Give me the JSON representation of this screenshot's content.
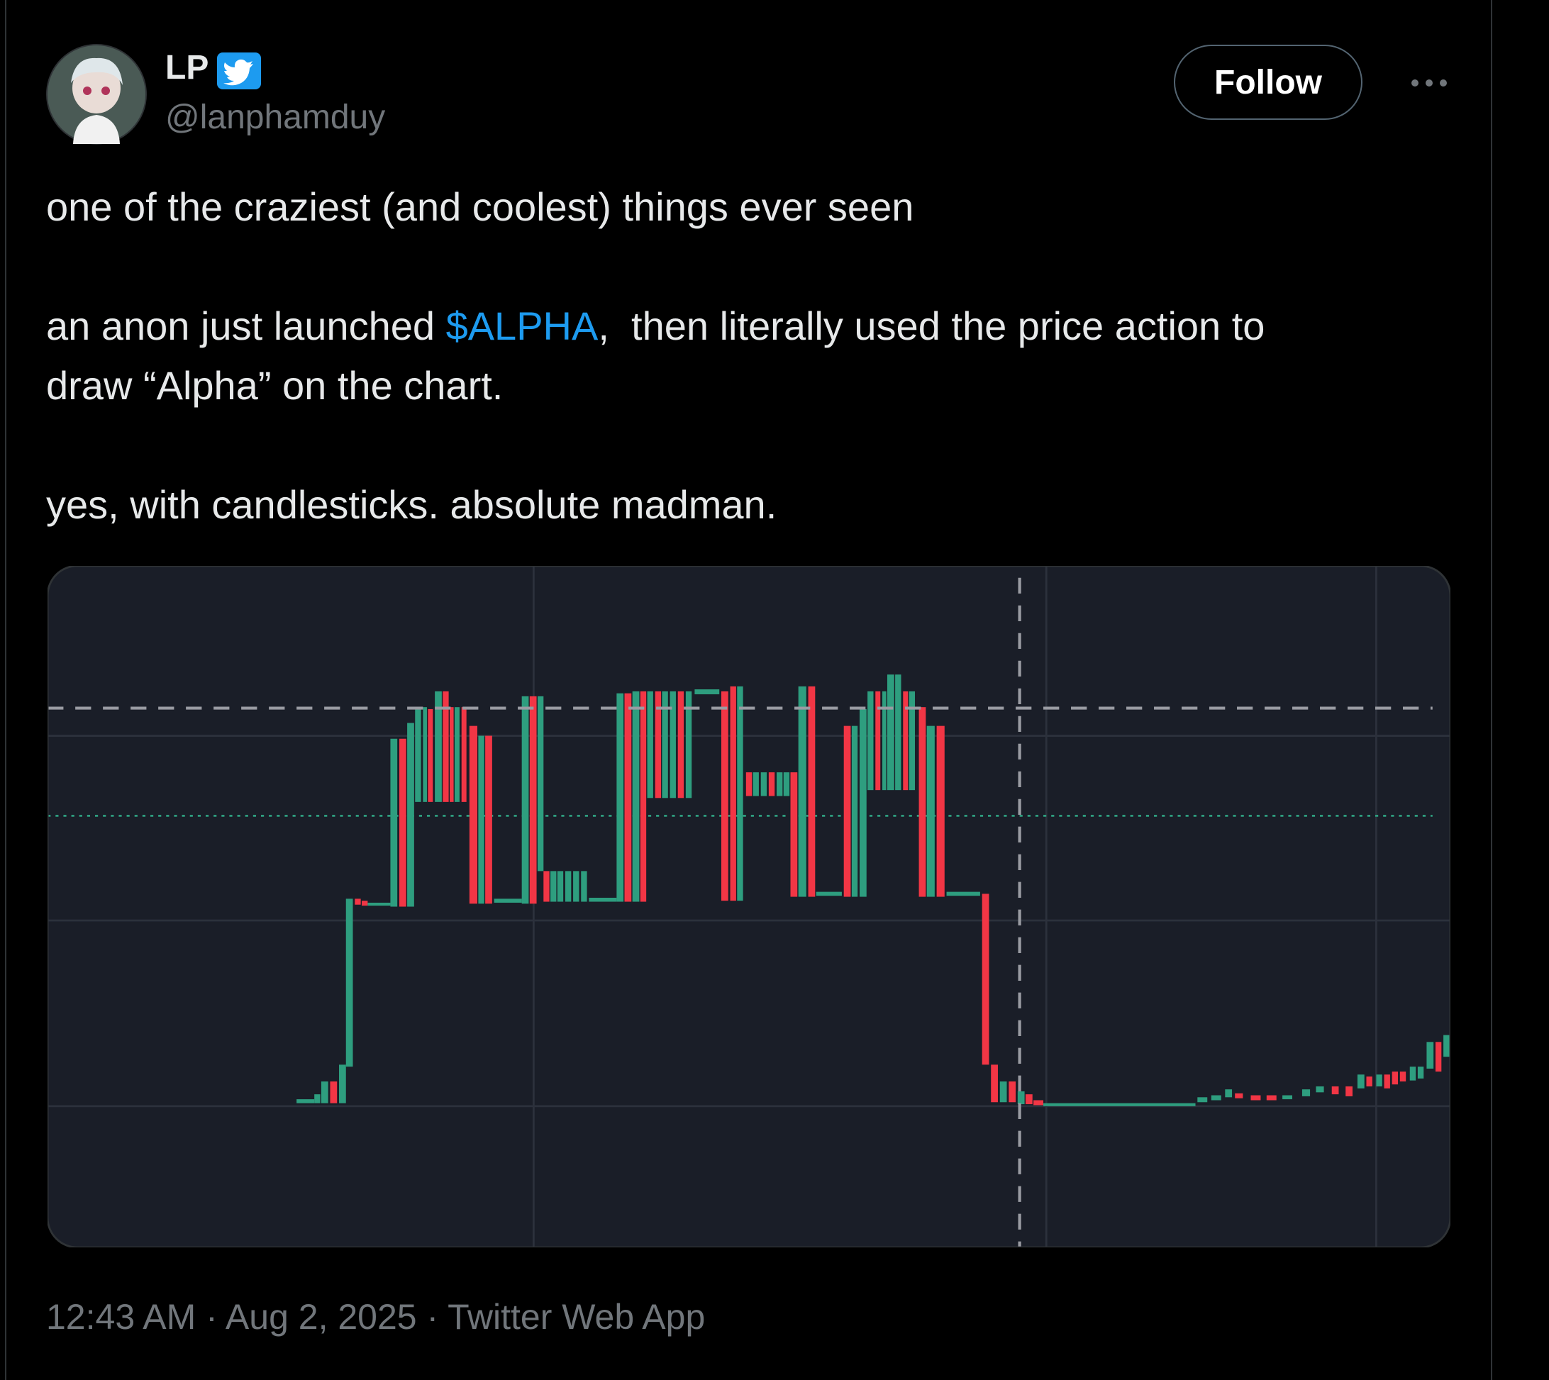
{
  "author": {
    "name": "LP",
    "handle": "@lanphamduy"
  },
  "follow_button": "Follow",
  "body": {
    "line1": "one of the craziest (and coolest) things ever seen",
    "line2_start": "an anon just launched ",
    "cashtag": "$ALPHA",
    "line2_end": ",  then literally used the price action to",
    "line3": "draw “Alpha” on the chart.",
    "line4": "yes, with candlesticks. absolute madman."
  },
  "timestamp": "12:43 AM · Aug 2, 2025 · Twitter Web App"
}
